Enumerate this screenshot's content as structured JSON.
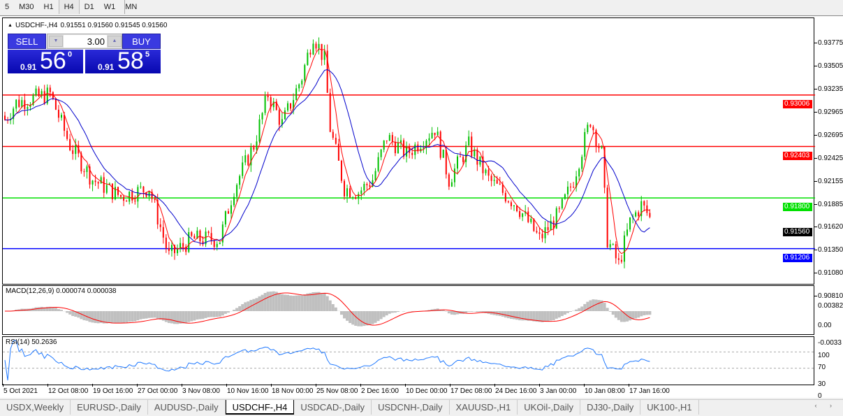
{
  "timeframes": [
    {
      "label": "5"
    },
    {
      "label": "M30"
    },
    {
      "label": "H1"
    },
    {
      "label": "H4",
      "active": true
    },
    {
      "label": "D1"
    },
    {
      "label": "W1"
    },
    {
      "label": "MN"
    }
  ],
  "chart": {
    "symbol": "USDCHF-,H4",
    "ohlc": "0.91551 0.91560 0.91545 0.91560",
    "trade": {
      "sell_label": "SELL",
      "buy_label": "BUY",
      "lot": "3.00",
      "sell": {
        "prefix": "0.91",
        "big": "56",
        "sup": "0"
      },
      "buy": {
        "prefix": "0.91",
        "big": "58",
        "sup": "5"
      }
    },
    "price_axis": [
      "0.93775",
      "0.93505",
      "0.93235",
      "0.92965",
      "0.92695",
      "0.92425",
      "0.92155",
      "0.91885",
      "0.91620",
      "0.91350",
      "0.91080",
      "0.90810"
    ],
    "levels": [
      {
        "price": "0.93006",
        "color": "#ff0000"
      },
      {
        "price": "0.92403",
        "color": "#ff0000"
      },
      {
        "price": "0.91800",
        "color": "#00e000"
      },
      {
        "price": "0.91206",
        "color": "#0000ff"
      }
    ],
    "current_price": "0.91560",
    "colors": {
      "bull": "#00c000",
      "bear": "#ff0000",
      "ma_fast": "#ff0000",
      "ma_slow": "#0000cc"
    },
    "price_path": [
      [
        0,
        0.927
      ],
      [
        4,
        0.929
      ],
      [
        16,
        0.93
      ],
      [
        23,
        0.924
      ],
      [
        31,
        0.92
      ],
      [
        41,
        0.918
      ],
      [
        51,
        0.919
      ],
      [
        58,
        0.911
      ],
      [
        66,
        0.913
      ],
      [
        76,
        0.913
      ],
      [
        81,
        0.919
      ],
      [
        88,
        0.924
      ],
      [
        93,
        0.93
      ],
      [
        98,
        0.9265
      ],
      [
        105,
        0.932
      ],
      [
        109,
        0.937
      ],
      [
        113,
        0.934
      ],
      [
        115,
        0.926
      ],
      [
        120,
        0.919
      ],
      [
        125,
        0.9185
      ],
      [
        130,
        0.92
      ],
      [
        135,
        0.925
      ],
      [
        142,
        0.923
      ],
      [
        152,
        0.926
      ],
      [
        157,
        0.92
      ],
      [
        164,
        0.924
      ],
      [
        171,
        0.92
      ],
      [
        181,
        0.917
      ],
      [
        189,
        0.913
      ],
      [
        196,
        0.916
      ],
      [
        201,
        0.92
      ],
      [
        207,
        0.927
      ],
      [
        211,
        0.923
      ],
      [
        213,
        0.913
      ],
      [
        217,
        0.91
      ],
      [
        221,
        0.915
      ],
      [
        225,
        0.917
      ],
      [
        228,
        0.9156
      ]
    ],
    "time_axis": [
      "5 Oct 2021",
      "12 Oct 08:00",
      "19 Oct 16:00",
      "27 Oct 00:00",
      "3 Nov 08:00",
      "10 Nov 16:00",
      "18 Nov 00:00",
      "25 Nov 08:00",
      "2 Dec 16:00",
      "10 Dec 00:00",
      "17 Dec 08:00",
      "24 Dec 16:00",
      "3 Jan 00:00",
      "10 Jan 08:00",
      "17 Jan 16:00"
    ]
  },
  "macd": {
    "label": "MACD(12,26,9) 0.000074 0.000038",
    "axis": [
      "0.00382",
      "0.00",
      "-0.0033"
    ],
    "hist_color": "#c0c0c0",
    "signal_color": "#ff0000"
  },
  "rsi": {
    "label": "RSI(14) 50.2636",
    "axis": [
      "100",
      "70",
      "30",
      "0"
    ],
    "color": "#1e78ff"
  },
  "tabs": [
    {
      "label": "USDX,Weekly"
    },
    {
      "label": "EURUSD-,Daily"
    },
    {
      "label": "AUDUSD-,Daily"
    },
    {
      "label": "USDCHF-,H4",
      "active": true
    },
    {
      "label": "USDCAD-,Daily"
    },
    {
      "label": "USDCNH-,Daily"
    },
    {
      "label": "XAUUSD-,H1"
    },
    {
      "label": "UKOil-,Daily"
    },
    {
      "label": "DJ30-,Daily"
    },
    {
      "label": "UK100-,H1"
    }
  ],
  "tab_nav": "‹ ›"
}
